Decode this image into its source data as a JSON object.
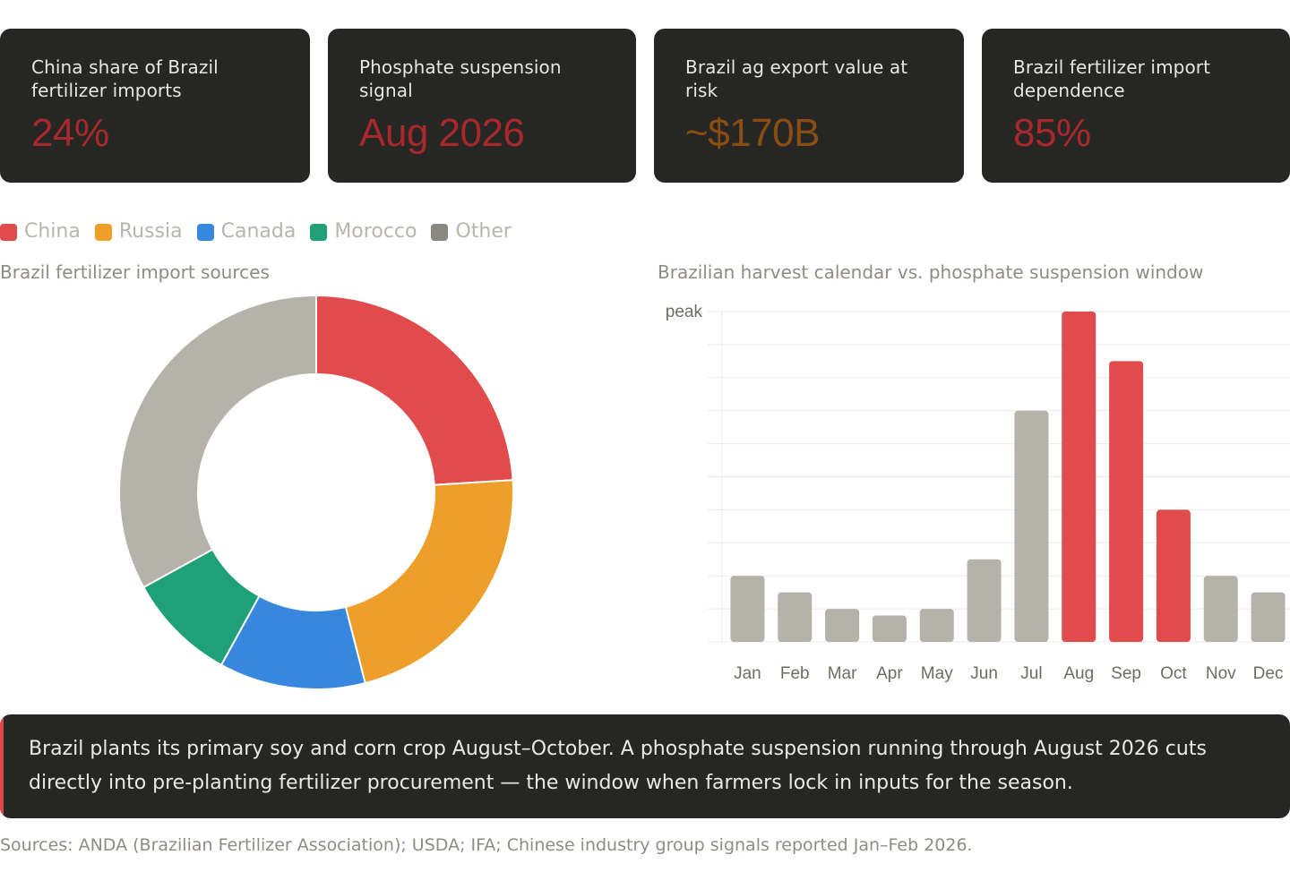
{
  "cards": [
    {
      "label": "China share of Brazil fertilizer imports",
      "value": "24%",
      "color": "#a8282b"
    },
    {
      "label": "Phosphate suspension signal",
      "value": "Aug 2026",
      "color": "#a8282b"
    },
    {
      "label": "Brazil ag export value at risk",
      "value": "~$170B",
      "color": "#8a4e12"
    },
    {
      "label": "Brazil fertilizer import dependence",
      "value": "85%",
      "color": "#a8282b"
    }
  ],
  "legend": [
    {
      "label": "China",
      "color": "#e24b4b"
    },
    {
      "label": "Russia",
      "color": "#ee9f2a"
    },
    {
      "label": "Canada",
      "color": "#3787df"
    },
    {
      "label": "Morocco",
      "color": "#1fa077"
    },
    {
      "label": "Other",
      "color": "#8a8883"
    }
  ],
  "chart_data": [
    {
      "type": "pie",
      "title": "Brazil fertilizer import sources",
      "variant": "donut",
      "labels": [
        "China",
        "Russia",
        "Canada",
        "Morocco",
        "Other"
      ],
      "values": [
        24,
        22,
        12,
        9,
        33
      ],
      "colors": [
        "#e24b4b",
        "#ee9f2a",
        "#3787df",
        "#1fa077",
        "#b5b2aa"
      ],
      "legend": "top-left"
    },
    {
      "type": "bar",
      "title": "Brazilian harvest calendar vs. phosphate suspension window",
      "categories": [
        "Jan",
        "Feb",
        "Mar",
        "Apr",
        "May",
        "Jun",
        "Jul",
        "Aug",
        "Sep",
        "Oct",
        "Nov",
        "Dec"
      ],
      "values": [
        2,
        1.5,
        1,
        0.8,
        1,
        2.5,
        7,
        10,
        8.5,
        4,
        2,
        1.5
      ],
      "ylim": [
        0,
        10
      ],
      "ytick_label": "peak",
      "highlight": [
        "Aug",
        "Sep",
        "Oct"
      ],
      "bar_color": "#b5b2aa",
      "highlight_color": "#e24b4b",
      "grid": true
    }
  ],
  "callout": {
    "text": "Brazil plants its primary soy and corn crop August–October. A phosphate suspension running through August 2026 cuts directly into pre-planting fertilizer procurement — the window when farmers lock in inputs for the season."
  },
  "sources": "Sources: ANDA (Brazilian Fertilizer Association); USDA; IFA; Chinese industry group signals reported Jan–Feb 2026."
}
